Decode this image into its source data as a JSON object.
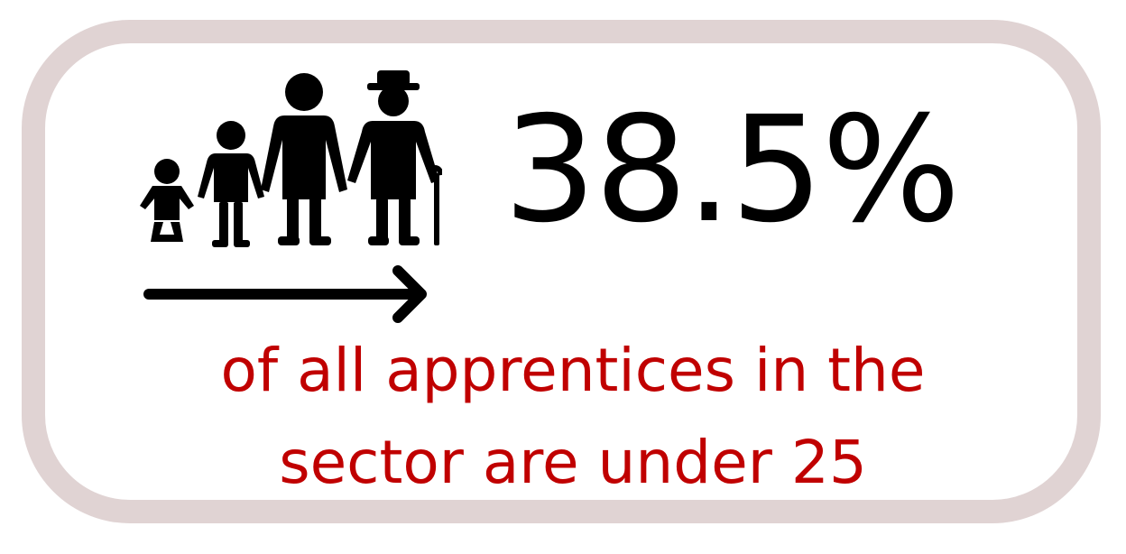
{
  "stat": {
    "value": "38.5%",
    "caption_line1": "of all apprentices in the",
    "caption_line2": "sector are under 25"
  },
  "icons": [
    "baby-icon",
    "child-icon",
    "adult-icon",
    "elderly-person-icon",
    "right-arrow-icon"
  ],
  "colors": {
    "frame_border": "#e0d3d3",
    "stat_text": "#000000",
    "caption_text": "#c00000"
  }
}
